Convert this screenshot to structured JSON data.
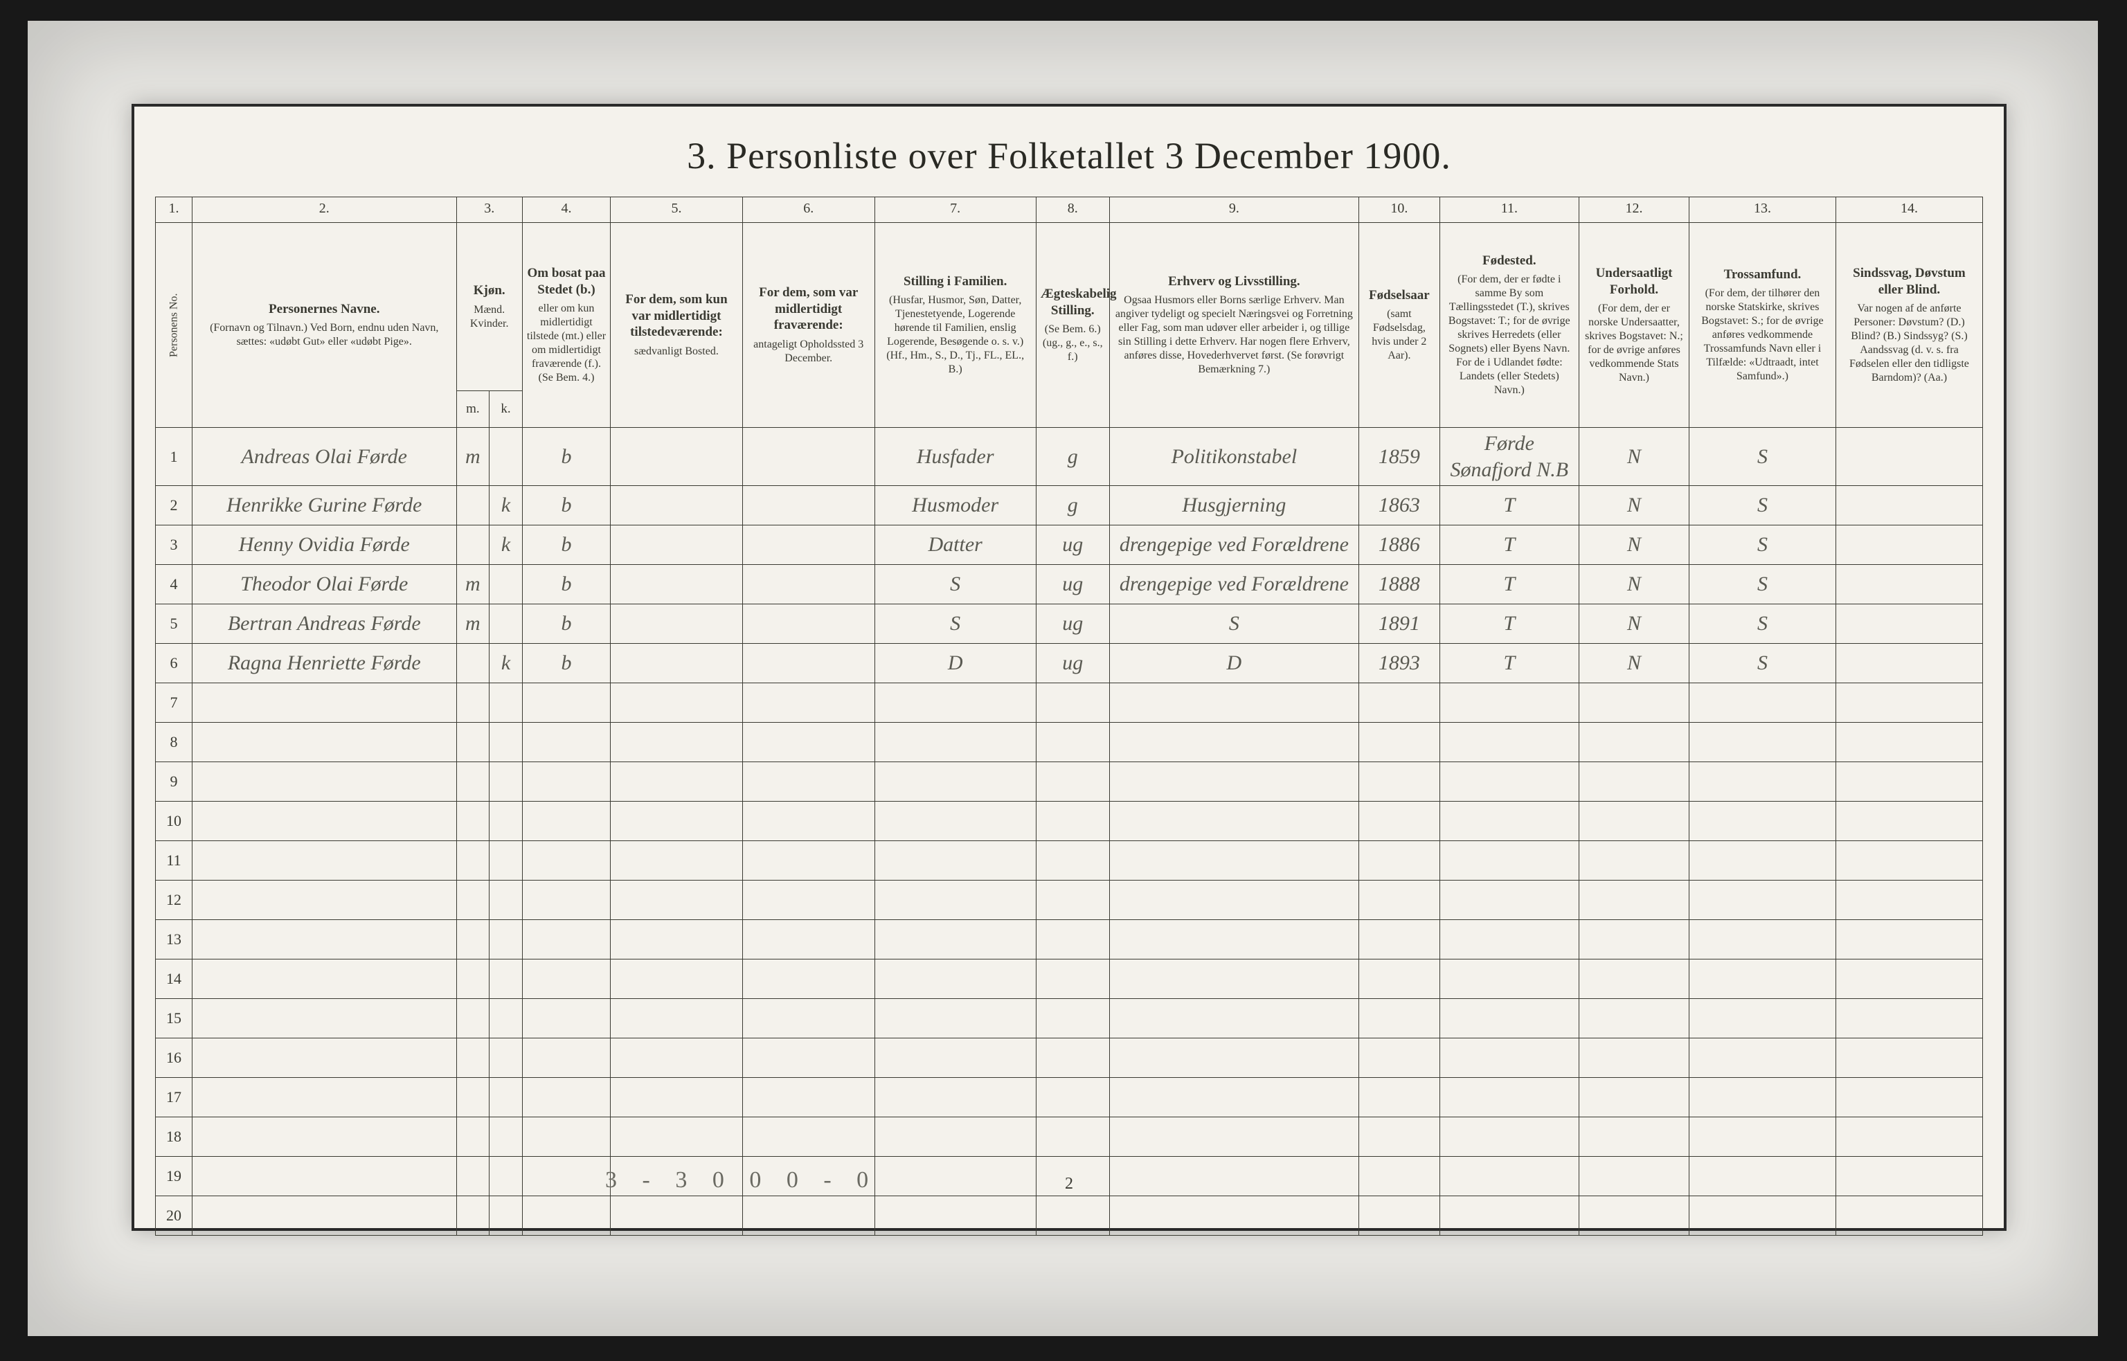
{
  "title": "3. Personliste over Folketallet 3 December 1900.",
  "page_number": "2",
  "footer_text": "3 - 3   0 0    0 - 0",
  "colors": {
    "background": "#181818",
    "frame": "#e9e8e4",
    "paper": "#f4f2ec",
    "ink": "#3a3a32",
    "handwriting": "#5a5a52"
  },
  "column_numbers": [
    "1.",
    "2.",
    "3.",
    "4.",
    "5.",
    "6.",
    "7.",
    "8.",
    "9.",
    "10.",
    "11.",
    "12.",
    "13.",
    "14."
  ],
  "kjon_sub": {
    "m": "m.",
    "k": "k."
  },
  "headers": [
    {
      "main": "Personens No.",
      "sub": ""
    },
    {
      "main": "Personernes Navne.",
      "sub": "(Fornavn og Tilnavn.)\nVed Born, endnu uden Navn, sættes: «udøbt Gut» eller «udøbt Pige»."
    },
    {
      "main": "Kjøn.",
      "sub": "Mænd.  Kvinder."
    },
    {
      "main": "Om bosat paa Stedet (b.)",
      "sub": "eller om kun midlertidigt tilstede (mt.) eller om midlertidigt fraværende (f.). (Se Bem. 4.)"
    },
    {
      "main": "For dem, som kun var midlertidigt tilstedeværende:",
      "sub": "sædvanligt Bosted."
    },
    {
      "main": "For dem, som var midlertidigt fraværende:",
      "sub": "antageligt Opholdssted 3 December."
    },
    {
      "main": "Stilling i Familien.",
      "sub": "(Husfar, Husmor, Søn, Datter, Tjenestetyende, Logerende hørende til Familien, enslig Logerende, Besøgende o. s. v.)\n(Hf., Hm., S., D., Tj., FL., EL., B.)"
    },
    {
      "main": "Ægteskabelig Stilling.",
      "sub": "(Se Bem. 6.)\n(ug., g., e., s., f.)"
    },
    {
      "main": "Erhverv og Livsstilling.",
      "sub": "Ogsaa Husmors eller Borns særlige Erhverv. Man angiver tydeligt og specielt Næringsvei og Forretning eller Fag, som man udøver eller arbeider i, og tillige sin Stilling i dette Erhverv. Har nogen flere Erhverv, anføres disse, Hovederhvervet først.\n(Se forøvrigt Bemærkning 7.)"
    },
    {
      "main": "Fødselsaar",
      "sub": "(samt Fødselsdag, hvis under 2 Aar)."
    },
    {
      "main": "Fødested.",
      "sub": "(For dem, der er fødte i samme By som Tællingsstedet (T.), skrives Bogstavet: T.; for de øvrige skrives Herredets (eller Sognets) eller Byens Navn. For de i Udlandet fødte: Landets (eller Stedets) Navn.)"
    },
    {
      "main": "Undersaatligt Forhold.",
      "sub": "(For dem, der er norske Undersaatter, skrives Bogstavet: N.; for de øvrige anføres vedkommende Stats Navn.)"
    },
    {
      "main": "Trossamfund.",
      "sub": "(For dem, der tilhører den norske Statskirke, skrives Bogstavet: S.; for de øvrige anføres vedkommende Trossamfunds Navn eller i Tilfælde: «Udtraadt, intet Samfund».)"
    },
    {
      "main": "Sindssvag, Døvstum eller Blind.",
      "sub": "Var nogen af de anførte Personer:\nDøvstum?  (D.)\nBlind?  (B.)\nSindssyg?  (S.)\nAandssvag (d. v. s. fra Fødselen eller den tidligste Barndom)? (Aa.)"
    }
  ],
  "rows": [
    {
      "no": "1",
      "name": "Andreas Olai Førde",
      "m": "m",
      "k": "",
      "bosat": "b",
      "c5": "",
      "c6": "",
      "fam": "Husfader",
      "egte": "g",
      "erhverv": "Politikonstabel",
      "aar": "1859",
      "sted": "Førde  Sønafjord N.B",
      "unders": "N",
      "tros": "S",
      "blind": ""
    },
    {
      "no": "2",
      "name": "Henrikke Gurine Førde",
      "m": "",
      "k": "k",
      "bosat": "b",
      "c5": "",
      "c6": "",
      "fam": "Husmoder",
      "egte": "g",
      "erhverv": "Husgjerning",
      "aar": "1863",
      "sted": "T",
      "unders": "N",
      "tros": "S",
      "blind": ""
    },
    {
      "no": "3",
      "name": "Henny Ovidia Førde",
      "m": "",
      "k": "k",
      "bosat": "b",
      "c5": "",
      "c6": "",
      "fam": "Datter",
      "egte": "ug",
      "erhverv": "drengepige ved Forældrene",
      "aar": "1886",
      "sted": "T",
      "unders": "N",
      "tros": "S",
      "blind": ""
    },
    {
      "no": "4",
      "name": "Theodor Olai Førde",
      "m": "m",
      "k": "",
      "bosat": "b",
      "c5": "",
      "c6": "",
      "fam": "S",
      "egte": "ug",
      "erhverv": "drengepige ved Forældrene",
      "aar": "1888",
      "sted": "T",
      "unders": "N",
      "tros": "S",
      "blind": ""
    },
    {
      "no": "5",
      "name": "Bertran Andreas Førde",
      "m": "m",
      "k": "",
      "bosat": "b",
      "c5": "",
      "c6": "",
      "fam": "S",
      "egte": "ug",
      "erhverv": "S",
      "aar": "1891",
      "sted": "T",
      "unders": "N",
      "tros": "S",
      "blind": ""
    },
    {
      "no": "6",
      "name": "Ragna Henriette Førde",
      "m": "",
      "k": "k",
      "bosat": "b",
      "c5": "",
      "c6": "",
      "fam": "D",
      "egte": "ug",
      "erhverv": "D",
      "aar": "1893",
      "sted": "T",
      "unders": "N",
      "tros": "S",
      "blind": ""
    },
    {
      "no": "7",
      "name": "",
      "m": "",
      "k": "",
      "bosat": "",
      "c5": "",
      "c6": "",
      "fam": "",
      "egte": "",
      "erhverv": "",
      "aar": "",
      "sted": "",
      "unders": "",
      "tros": "",
      "blind": ""
    },
    {
      "no": "8",
      "name": "",
      "m": "",
      "k": "",
      "bosat": "",
      "c5": "",
      "c6": "",
      "fam": "",
      "egte": "",
      "erhverv": "",
      "aar": "",
      "sted": "",
      "unders": "",
      "tros": "",
      "blind": ""
    },
    {
      "no": "9",
      "name": "",
      "m": "",
      "k": "",
      "bosat": "",
      "c5": "",
      "c6": "",
      "fam": "",
      "egte": "",
      "erhverv": "",
      "aar": "",
      "sted": "",
      "unders": "",
      "tros": "",
      "blind": ""
    },
    {
      "no": "10",
      "name": "",
      "m": "",
      "k": "",
      "bosat": "",
      "c5": "",
      "c6": "",
      "fam": "",
      "egte": "",
      "erhverv": "",
      "aar": "",
      "sted": "",
      "unders": "",
      "tros": "",
      "blind": ""
    },
    {
      "no": "11",
      "name": "",
      "m": "",
      "k": "",
      "bosat": "",
      "c5": "",
      "c6": "",
      "fam": "",
      "egte": "",
      "erhverv": "",
      "aar": "",
      "sted": "",
      "unders": "",
      "tros": "",
      "blind": ""
    },
    {
      "no": "12",
      "name": "",
      "m": "",
      "k": "",
      "bosat": "",
      "c5": "",
      "c6": "",
      "fam": "",
      "egte": "",
      "erhverv": "",
      "aar": "",
      "sted": "",
      "unders": "",
      "tros": "",
      "blind": ""
    },
    {
      "no": "13",
      "name": "",
      "m": "",
      "k": "",
      "bosat": "",
      "c5": "",
      "c6": "",
      "fam": "",
      "egte": "",
      "erhverv": "",
      "aar": "",
      "sted": "",
      "unders": "",
      "tros": "",
      "blind": ""
    },
    {
      "no": "14",
      "name": "",
      "m": "",
      "k": "",
      "bosat": "",
      "c5": "",
      "c6": "",
      "fam": "",
      "egte": "",
      "erhverv": "",
      "aar": "",
      "sted": "",
      "unders": "",
      "tros": "",
      "blind": ""
    },
    {
      "no": "15",
      "name": "",
      "m": "",
      "k": "",
      "bosat": "",
      "c5": "",
      "c6": "",
      "fam": "",
      "egte": "",
      "erhverv": "",
      "aar": "",
      "sted": "",
      "unders": "",
      "tros": "",
      "blind": ""
    },
    {
      "no": "16",
      "name": "",
      "m": "",
      "k": "",
      "bosat": "",
      "c5": "",
      "c6": "",
      "fam": "",
      "egte": "",
      "erhverv": "",
      "aar": "",
      "sted": "",
      "unders": "",
      "tros": "",
      "blind": ""
    },
    {
      "no": "17",
      "name": "",
      "m": "",
      "k": "",
      "bosat": "",
      "c5": "",
      "c6": "",
      "fam": "",
      "egte": "",
      "erhverv": "",
      "aar": "",
      "sted": "",
      "unders": "",
      "tros": "",
      "blind": ""
    },
    {
      "no": "18",
      "name": "",
      "m": "",
      "k": "",
      "bosat": "",
      "c5": "",
      "c6": "",
      "fam": "",
      "egte": "",
      "erhverv": "",
      "aar": "",
      "sted": "",
      "unders": "",
      "tros": "",
      "blind": ""
    },
    {
      "no": "19",
      "name": "",
      "m": "",
      "k": "",
      "bosat": "",
      "c5": "",
      "c6": "",
      "fam": "",
      "egte": "",
      "erhverv": "",
      "aar": "",
      "sted": "",
      "unders": "",
      "tros": "",
      "blind": ""
    },
    {
      "no": "20",
      "name": "",
      "m": "",
      "k": "",
      "bosat": "",
      "c5": "",
      "c6": "",
      "fam": "",
      "egte": "",
      "erhverv": "",
      "aar": "",
      "sted": "",
      "unders": "",
      "tros": "",
      "blind": ""
    }
  ]
}
